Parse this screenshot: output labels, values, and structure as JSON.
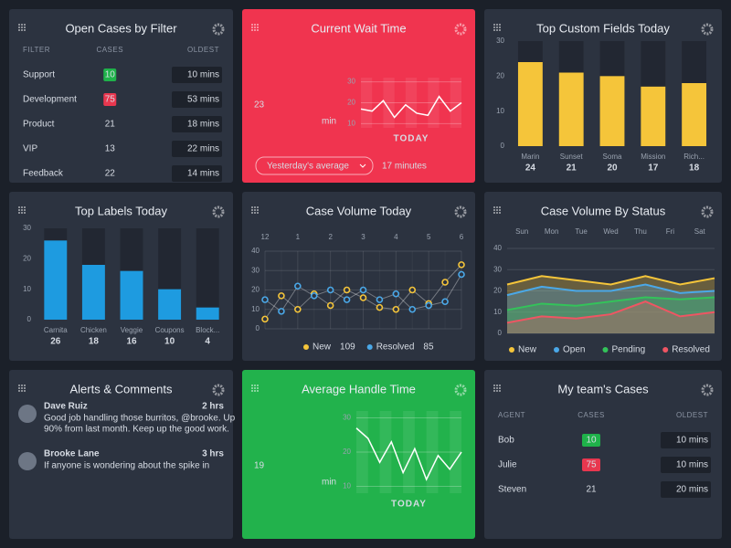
{
  "open_cases": {
    "title": "Open Cases by Filter",
    "columns": [
      "FILTER",
      "CASES",
      "OLDEST"
    ],
    "rows": [
      {
        "filter": "Support",
        "cases": 10,
        "oldest": "10 mins",
        "badge": "#1fb24a"
      },
      {
        "filter": "Development",
        "cases": 75,
        "oldest": "53 mins",
        "badge": "#e8374f"
      },
      {
        "filter": "Product",
        "cases": 21,
        "oldest": "18 mins"
      },
      {
        "filter": "VIP",
        "cases": 13,
        "oldest": "22 mins"
      },
      {
        "filter": "Feedback",
        "cases": 22,
        "oldest": "14 mins"
      }
    ]
  },
  "wait_time": {
    "title": "Current Wait Time",
    "value": 23,
    "unit": "min",
    "dropdown": "Yesterday's average",
    "average": "17 minutes",
    "chart": {
      "type": "line",
      "label": "TODAY",
      "values": [
        17,
        16,
        21,
        13,
        19,
        15,
        14,
        23,
        16,
        20
      ],
      "ylim": [
        8,
        32
      ],
      "yticks": [
        10,
        20,
        30
      ],
      "color": "#ffffff"
    }
  },
  "top_fields": {
    "title": "Top Custom Fields Today",
    "chart": {
      "type": "bar",
      "categories": [
        "Marin",
        "Sunset",
        "Soma",
        "Mission",
        "Rich..."
      ],
      "values": [
        24,
        21,
        20,
        17,
        18
      ],
      "ylim": [
        0,
        30
      ],
      "yticks": [
        0,
        10,
        20,
        30
      ],
      "color": "#f5c53a"
    }
  },
  "top_labels": {
    "title": "Top Labels Today",
    "chart": {
      "type": "bar",
      "categories": [
        "Carnita",
        "Chicken",
        "Veggie",
        "Coupons",
        "Block..."
      ],
      "values": [
        26,
        18,
        16,
        10,
        4
      ],
      "ylim": [
        0,
        30
      ],
      "yticks": [
        0,
        10,
        20,
        30
      ],
      "color": "#1e9be0"
    }
  },
  "case_volume": {
    "title": "Case Volume Today",
    "chart": {
      "type": "line",
      "categories": [
        "12",
        null,
        "1",
        null,
        "2",
        null,
        "3",
        null,
        "4",
        null,
        "5",
        null,
        "6"
      ],
      "ylim": [
        0,
        40
      ],
      "yticks": [
        0,
        10,
        20,
        30,
        40
      ],
      "series": [
        {
          "name": "New",
          "total": 109,
          "color": "#f5c53a",
          "values": [
            5,
            17,
            10,
            18,
            12,
            20,
            16,
            11,
            10,
            20,
            13,
            24,
            33
          ]
        },
        {
          "name": "Resolved",
          "total": 85,
          "color": "#4aa8e8",
          "values": [
            15,
            9,
            22,
            17,
            20,
            15,
            20,
            15,
            18,
            10,
            12,
            14,
            28
          ]
        }
      ]
    }
  },
  "status": {
    "title": "Case Volume By Status",
    "chart": {
      "type": "area",
      "categories": [
        "Sun",
        "Mon",
        "Tue",
        "Wed",
        "Thu",
        "Fri",
        "Sat"
      ],
      "ylim": [
        0,
        40
      ],
      "yticks": [
        0,
        10,
        20,
        30,
        40
      ],
      "series": [
        {
          "name": "New",
          "color": "#f5c53a",
          "values": [
            23,
            27,
            25,
            23,
            27,
            23,
            26
          ]
        },
        {
          "name": "Open",
          "color": "#4aa8e8",
          "values": [
            18,
            22,
            20,
            20,
            23,
            19,
            20
          ]
        },
        {
          "name": "Pending",
          "color": "#33c35a",
          "values": [
            11,
            14,
            13,
            15,
            17,
            16,
            17
          ]
        },
        {
          "name": "Resolved",
          "color": "#ef5563",
          "values": [
            5,
            8,
            7,
            9,
            15,
            8,
            10
          ]
        }
      ]
    }
  },
  "alerts": {
    "title": "Alerts & Comments",
    "items": [
      {
        "name": "Dave Ruiz",
        "time": "2 hrs",
        "lines": [
          "Good job handling those burritos, @brooke. Up",
          "90% from last month. Keep up the good work."
        ]
      },
      {
        "name": "Brooke Lane",
        "time": "3 hrs",
        "lines": [
          "If anyone is wondering about the spike in"
        ]
      }
    ]
  },
  "handle_time": {
    "title": "Average Handle Time",
    "value": 19,
    "unit": "min",
    "chart": {
      "type": "line",
      "label": "TODAY",
      "values": [
        27,
        24,
        17,
        23,
        14,
        21,
        12,
        19,
        15,
        20
      ],
      "ylim": [
        8,
        32
      ],
      "yticks": [
        10,
        20,
        30
      ],
      "color": "#ffffff"
    }
  },
  "team_cases": {
    "title": "My team's Cases",
    "columns": [
      "AGENT",
      "CASES",
      "OLDEST"
    ],
    "rows": [
      {
        "agent": "Bob",
        "cases": 10,
        "oldest": "10 mins",
        "badge": "#1fb24a"
      },
      {
        "agent": "Julie",
        "cases": 75,
        "oldest": "10 mins",
        "badge": "#e8374f"
      },
      {
        "agent": "Steven",
        "cases": 21,
        "oldest": "20 mins"
      }
    ]
  }
}
